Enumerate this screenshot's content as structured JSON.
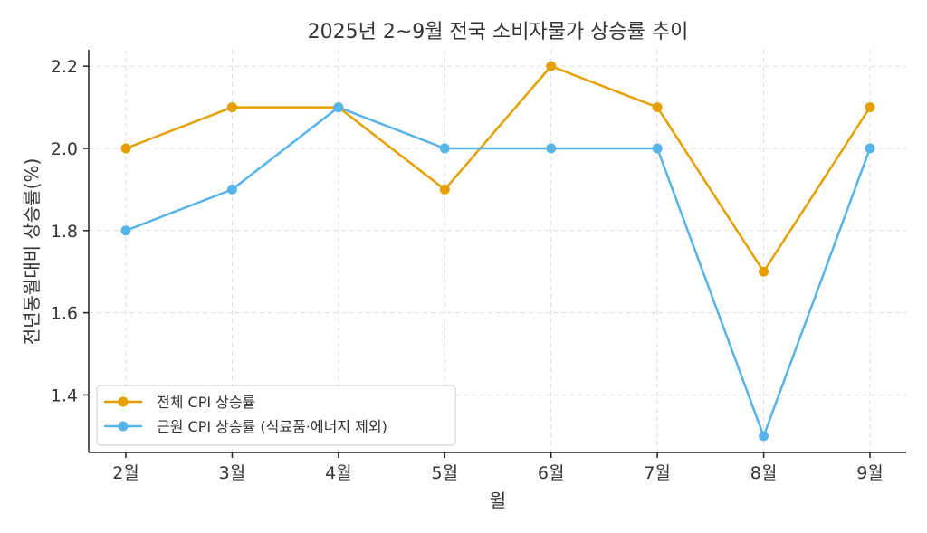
{
  "chart_data": {
    "type": "line",
    "title": "2025년 2~9월 전국 소비자물가 상승률 추이",
    "xlabel": "월",
    "ylabel": "전년동월대비 상승률(%)",
    "categories": [
      "2월",
      "3월",
      "4월",
      "5월",
      "6월",
      "7월",
      "8월",
      "9월"
    ],
    "ylim": [
      1.26,
      2.24
    ],
    "yticks": [
      1.4,
      1.6,
      1.8,
      2.0,
      2.2
    ],
    "ytick_labels": [
      "1.4",
      "1.6",
      "1.8",
      "2.0",
      "2.2"
    ],
    "grid": true,
    "legend_position": "bottom-left",
    "series": [
      {
        "name": "전체 CPI 상승률",
        "color": "#E69F00",
        "values": [
          2.0,
          2.1,
          2.1,
          1.9,
          2.2,
          2.1,
          1.7,
          2.1
        ]
      },
      {
        "name": "근원 CPI 상승률 (식료품·에너지 제외)",
        "color": "#56B4E9",
        "values": [
          1.8,
          1.9,
          2.1,
          2.0,
          2.0,
          2.0,
          1.3,
          2.0
        ]
      }
    ]
  }
}
